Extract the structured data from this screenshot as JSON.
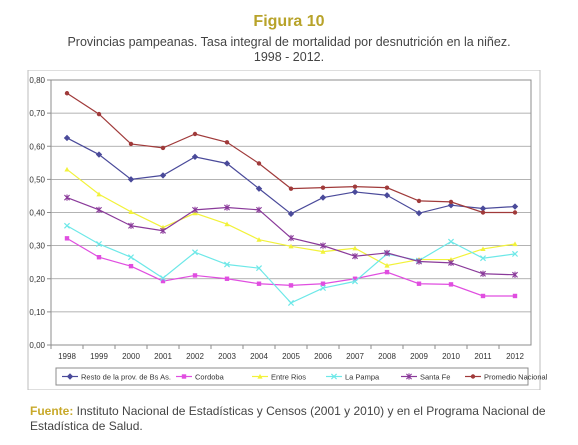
{
  "figure_label": "Figura 10",
  "subtitle_line1": "Provincias pampeanas. Tasa integral de mortalidad por desnutrición en la niñez.",
  "subtitle_line2": "1998 - 2012.",
  "source": {
    "label": "Fuente:",
    "text": " Instituto Nacional de Estadísticas y Censos (2001 y 2010) y en el Programa Nacional de Estadística de Salud."
  },
  "chart_data": {
    "type": "line",
    "title": "",
    "xlabel": "",
    "ylabel": "",
    "ylim": [
      0,
      0.8
    ],
    "yticks": [
      "0,00",
      "0,10",
      "0,20",
      "0,30",
      "0,40",
      "0,50",
      "0,60",
      "0,70",
      "0,80"
    ],
    "grid": true,
    "legend_position": "bottom",
    "categories": [
      "1998",
      "1999",
      "2000",
      "2001",
      "2002",
      "2003",
      "2004",
      "2005",
      "2006",
      "2007",
      "2008",
      "2009",
      "2010",
      "2011",
      "2012"
    ],
    "series": [
      {
        "name": "Resto de la prov. de Bs As.",
        "color": "#4a4a9a",
        "marker": "diamond",
        "values": [
          0.625,
          0.575,
          0.5,
          0.512,
          0.568,
          0.548,
          0.472,
          0.396,
          0.445,
          0.462,
          0.452,
          0.398,
          0.422,
          0.412,
          0.418
        ]
      },
      {
        "name": "Cordoba",
        "color": "#e04ee0",
        "marker": "square",
        "values": [
          0.322,
          0.265,
          0.238,
          0.193,
          0.21,
          0.2,
          0.185,
          0.18,
          0.185,
          0.2,
          0.22,
          0.185,
          0.183,
          0.148,
          0.148
        ]
      },
      {
        "name": "Entre Rios",
        "color": "#f2f23a",
        "marker": "triangle",
        "values": [
          0.53,
          0.455,
          0.402,
          0.355,
          0.398,
          0.365,
          0.318,
          0.298,
          0.282,
          0.292,
          0.24,
          0.258,
          0.258,
          0.29,
          0.305
        ]
      },
      {
        "name": "La Pampa",
        "color": "#6de8e8",
        "marker": "x",
        "values": [
          0.36,
          0.305,
          0.265,
          0.202,
          0.28,
          0.243,
          0.232,
          0.127,
          0.172,
          0.192,
          0.275,
          0.255,
          0.312,
          0.262,
          0.275
        ]
      },
      {
        "name": "Santa Fe",
        "color": "#8a3a9a",
        "marker": "star",
        "values": [
          0.445,
          0.408,
          0.36,
          0.345,
          0.408,
          0.415,
          0.408,
          0.323,
          0.3,
          0.268,
          0.278,
          0.252,
          0.248,
          0.215,
          0.212
        ]
      },
      {
        "name": "Promedio Nacional",
        "color": "#a03a3a",
        "marker": "circle",
        "values": [
          0.76,
          0.697,
          0.607,
          0.595,
          0.637,
          0.612,
          0.548,
          0.472,
          0.475,
          0.478,
          0.475,
          0.435,
          0.432,
          0.4,
          0.4
        ]
      }
    ]
  }
}
